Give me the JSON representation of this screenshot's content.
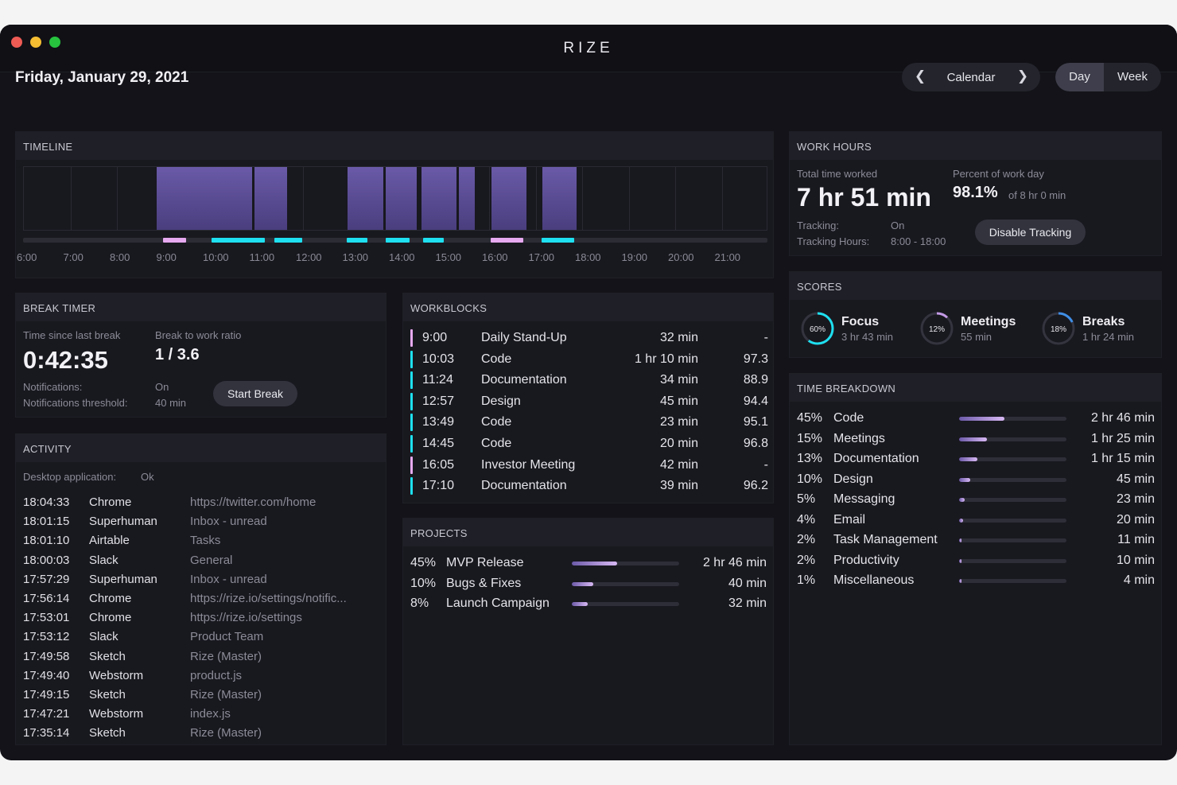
{
  "app": {
    "title": "RIZE"
  },
  "header": {
    "date": "Friday, January 29, 2021",
    "nav": {
      "label": "Calendar",
      "prev_icon": "chevron-left-icon",
      "next_icon": "chevron-right-icon"
    },
    "view": {
      "day": "Day",
      "week": "Week",
      "selected": "Day"
    }
  },
  "timeline": {
    "title": "TIMELINE",
    "hours": [
      "6:00",
      "7:00",
      "8:00",
      "9:00",
      "10:00",
      "11:00",
      "12:00",
      "13:00",
      "14:00",
      "15:00",
      "16:00",
      "17:00",
      "18:00",
      "19:00",
      "20:00",
      "21:00"
    ],
    "blocks": [
      {
        "start": 8.85,
        "end": 9.6
      },
      {
        "start": 9.6,
        "end": 10.9
      },
      {
        "start": 10.95,
        "end": 11.65
      },
      {
        "start": 12.95,
        "end": 13.72
      },
      {
        "start": 13.77,
        "end": 14.45
      },
      {
        "start": 14.55,
        "end": 15.3
      },
      {
        "start": 15.35,
        "end": 15.7
      },
      {
        "start": 16.05,
        "end": 16.8
      },
      {
        "start": 17.15,
        "end": 17.88
      }
    ],
    "segments": [
      {
        "start": 9.0,
        "end": 9.5,
        "kind": "meeting"
      },
      {
        "start": 10.05,
        "end": 11.2,
        "kind": "focus"
      },
      {
        "start": 11.4,
        "end": 12.0,
        "kind": "focus"
      },
      {
        "start": 12.95,
        "end": 13.4,
        "kind": "focus"
      },
      {
        "start": 13.8,
        "end": 14.3,
        "kind": "focus"
      },
      {
        "start": 14.6,
        "end": 15.05,
        "kind": "focus"
      },
      {
        "start": 16.05,
        "end": 16.75,
        "kind": "meeting"
      },
      {
        "start": 17.15,
        "end": 17.85,
        "kind": "focus"
      }
    ],
    "colors": {
      "meeting": "#e7a9f0",
      "focus": "#1ee0f0"
    }
  },
  "work_hours": {
    "title": "WORK HOURS",
    "total_label": "Total time worked",
    "total_value": "7 hr 51 min",
    "percent_label": "Percent of work day",
    "percent_value": "98.1%",
    "percent_of": "of 8 hr 0 min",
    "tracking_label": "Tracking:",
    "tracking_value": "On",
    "hours_label": "Tracking Hours:",
    "hours_value": "8:00 - 18:00",
    "button": "Disable Tracking"
  },
  "break_timer": {
    "title": "BREAK TIMER",
    "since_label": "Time since last break",
    "since_value": "0:42:35",
    "ratio_label": "Break to work ratio",
    "ratio_value": "1 / 3.6",
    "notif_label": "Notifications:",
    "notif_value": "On",
    "threshold_label": "Notifications threshold:",
    "threshold_value": "40 min",
    "button": "Start Break"
  },
  "workblocks": {
    "title": "WORKBLOCKS",
    "rows": [
      {
        "time": "9:00",
        "name": "Daily Stand-Up",
        "duration": "32 min",
        "score": "-",
        "kind": "meeting"
      },
      {
        "time": "10:03",
        "name": "Code",
        "duration": "1 hr 10 min",
        "score": "97.3",
        "kind": "focus"
      },
      {
        "time": "11:24",
        "name": "Documentation",
        "duration": "34 min",
        "score": "88.9",
        "kind": "focus"
      },
      {
        "time": "12:57",
        "name": "Design",
        "duration": "45 min",
        "score": "94.4",
        "kind": "focus"
      },
      {
        "time": "13:49",
        "name": "Code",
        "duration": "23 min",
        "score": "95.1",
        "kind": "focus"
      },
      {
        "time": "14:45",
        "name": "Code",
        "duration": "20 min",
        "score": "96.8",
        "kind": "focus"
      },
      {
        "time": "16:05",
        "name": "Investor Meeting",
        "duration": "42 min",
        "score": "-",
        "kind": "meeting"
      },
      {
        "time": "17:10",
        "name": "Documentation",
        "duration": "39 min",
        "score": "96.2",
        "kind": "focus"
      }
    ]
  },
  "scores": {
    "title": "SCORES",
    "items": [
      {
        "name": "Focus",
        "percent": 60,
        "percent_label": "60%",
        "sub": "3 hr 43 min",
        "color": "#1ee0f0"
      },
      {
        "name": "Meetings",
        "percent": 12,
        "percent_label": "12%",
        "sub": "55 min",
        "color": "#c49ae6"
      },
      {
        "name": "Breaks",
        "percent": 18,
        "percent_label": "18%",
        "sub": "1 hr 24 min",
        "color": "#3f8ee6"
      }
    ]
  },
  "activity": {
    "title": "ACTIVITY",
    "desktop_label": "Desktop application:",
    "desktop_value": "Ok",
    "rows": [
      {
        "time": "18:04:33",
        "app": "Chrome",
        "detail": "https://twitter.com/home"
      },
      {
        "time": "18:01:15",
        "app": "Superhuman",
        "detail": "Inbox - unread"
      },
      {
        "time": "18:01:10",
        "app": "Airtable",
        "detail": "Tasks"
      },
      {
        "time": "18:00:03",
        "app": "Slack",
        "detail": "General"
      },
      {
        "time": "17:57:29",
        "app": "Superhuman",
        "detail": "Inbox - unread"
      },
      {
        "time": "17:56:14",
        "app": "Chrome",
        "detail": "https://rize.io/settings/notific..."
      },
      {
        "time": "17:53:01",
        "app": "Chrome",
        "detail": "https://rize.io/settings"
      },
      {
        "time": "17:53:12",
        "app": "Slack",
        "detail": "Product Team"
      },
      {
        "time": "17:49:58",
        "app": "Sketch",
        "detail": "Rize (Master)"
      },
      {
        "time": "17:49:40",
        "app": "Webstorm",
        "detail": "product.js"
      },
      {
        "time": "17:49:15",
        "app": "Sketch",
        "detail": "Rize (Master)"
      },
      {
        "time": "17:47:21",
        "app": "Webstorm",
        "detail": "index.js"
      },
      {
        "time": "17:35:14",
        "app": "Sketch",
        "detail": "Rize (Master)"
      }
    ]
  },
  "projects": {
    "title": "PROJECTS",
    "rows": [
      {
        "percent": "45%",
        "name": "MVP Release",
        "fraction": 0.42,
        "time": "2 hr 46 min"
      },
      {
        "percent": "10%",
        "name": "Bugs & Fixes",
        "fraction": 0.2,
        "time": "40 min"
      },
      {
        "percent": "8%",
        "name": "Launch Campaign",
        "fraction": 0.15,
        "time": "32 min"
      }
    ]
  },
  "time_breakdown": {
    "title": "TIME BREAKDOWN",
    "rows": [
      {
        "percent": "45%",
        "name": "Code",
        "fraction": 0.42,
        "time": "2 hr 46 min"
      },
      {
        "percent": "15%",
        "name": "Meetings",
        "fraction": 0.26,
        "time": "1 hr 25 min"
      },
      {
        "percent": "13%",
        "name": "Documentation",
        "fraction": 0.17,
        "time": "1 hr 15 min"
      },
      {
        "percent": "10%",
        "name": "Design",
        "fraction": 0.1,
        "time": "45 min"
      },
      {
        "percent": "5%",
        "name": "Messaging",
        "fraction": 0.05,
        "time": "23 min"
      },
      {
        "percent": "4%",
        "name": "Email",
        "fraction": 0.04,
        "time": "20 min"
      },
      {
        "percent": "2%",
        "name": "Task Management",
        "fraction": 0.02,
        "time": "11 min"
      },
      {
        "percent": "2%",
        "name": "Productivity",
        "fraction": 0.02,
        "time": "10 min"
      },
      {
        "percent": "1%",
        "name": "Miscellaneous",
        "fraction": 0.01,
        "time": "4 min"
      }
    ]
  }
}
